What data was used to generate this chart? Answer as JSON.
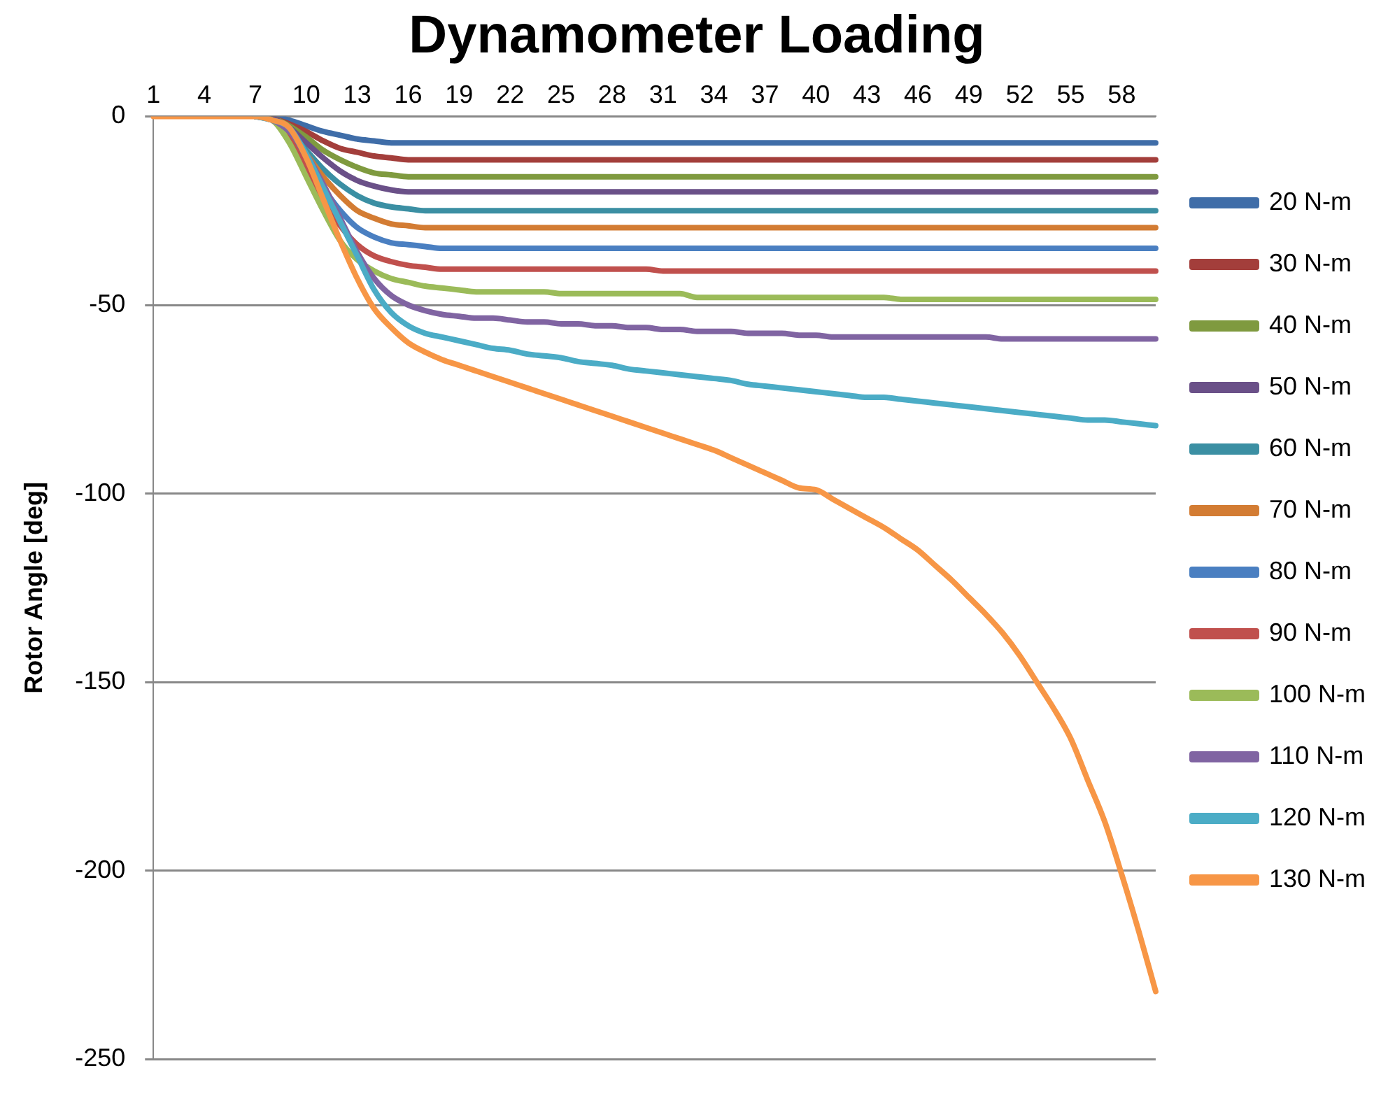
{
  "chart_data": {
    "type": "line",
    "title": "Dynamometer Loading",
    "ylabel": "Rotor Angle [deg]",
    "categories": [
      "1",
      null,
      null,
      "4",
      null,
      null,
      "7",
      null,
      null,
      "10",
      null,
      null,
      "13",
      null,
      null,
      "16",
      null,
      null,
      "19",
      null,
      null,
      "22",
      null,
      null,
      "25",
      null,
      null,
      "28",
      null,
      null,
      "31",
      null,
      null,
      "34",
      null,
      null,
      "37",
      null,
      null,
      "40",
      null,
      null,
      "43",
      null,
      null,
      "46",
      null,
      null,
      "49",
      null,
      null,
      "52",
      null,
      null,
      "55",
      null,
      null,
      "58",
      null,
      null
    ],
    "ylim": [
      -250,
      0
    ],
    "yticks": [
      -250,
      -200,
      -150,
      -100,
      -50,
      0
    ],
    "grid": "y",
    "legend": "right",
    "marker": "none",
    "line_style": "solid",
    "series": [
      {
        "name": "20 N-m",
        "color": "#3f6da8",
        "values": [
          null,
          null,
          null,
          null,
          null,
          null,
          0,
          0,
          -1,
          -2.5,
          -4,
          -5,
          -6,
          -6.5,
          -7,
          -7,
          -7,
          -7,
          -7,
          -7,
          -7,
          -7,
          -7,
          -7,
          -7,
          -7,
          -7,
          -7,
          -7,
          -7,
          -7,
          -7,
          -7,
          -7,
          -7,
          -7,
          -7,
          -7,
          -7,
          -7,
          -7,
          -7,
          -7,
          -7,
          -7,
          -7,
          -7,
          -7,
          -7,
          -7,
          -7,
          -7,
          -7,
          -7,
          -7,
          -7,
          -7,
          -7,
          -7,
          -7
        ]
      },
      {
        "name": "30 N-m",
        "color": "#a33e3b",
        "values": [
          null,
          null,
          null,
          null,
          null,
          null,
          0,
          -0.5,
          -2,
          -4,
          -6.5,
          -8.5,
          -9.5,
          -10.5,
          -11,
          -11.5,
          -11.5,
          -11.5,
          -11.5,
          -11.5,
          -11.5,
          -11.5,
          -11.5,
          -11.5,
          -11.5,
          -11.5,
          -11.5,
          -11.5,
          -11.5,
          -11.5,
          -11.5,
          -11.5,
          -11.5,
          -11.5,
          -11.5,
          -11.5,
          -11.5,
          -11.5,
          -11.5,
          -11.5,
          -11.5,
          -11.5,
          -11.5,
          -11.5,
          -11.5,
          -11.5,
          -11.5,
          -11.5,
          -11.5,
          -11.5,
          -11.5,
          -11.5,
          -11.5,
          -11.5,
          -11.5,
          -11.5,
          -11.5,
          -11.5,
          -11.5,
          -11.5
        ]
      },
      {
        "name": "40 N-m",
        "color": "#7f9a3f",
        "values": [
          null,
          null,
          null,
          null,
          null,
          null,
          0,
          -0.5,
          -2.5,
          -5.5,
          -9,
          -11.5,
          -13.5,
          -15,
          -15.5,
          -16,
          -16,
          -16,
          -16,
          -16,
          -16,
          -16,
          -16,
          -16,
          -16,
          -16,
          -16,
          -16,
          -16,
          -16,
          -16,
          -16,
          -16,
          -16,
          -16,
          -16,
          -16,
          -16,
          -16,
          -16,
          -16,
          -16,
          -16,
          -16,
          -16,
          -16,
          -16,
          -16,
          -16,
          -16,
          -16,
          -16,
          -16,
          -16,
          -16,
          -16,
          -16,
          -16,
          -16,
          -16
        ]
      },
      {
        "name": "50 N-m",
        "color": "#6a5088",
        "values": [
          null,
          null,
          null,
          null,
          null,
          null,
          0,
          -0.5,
          -3,
          -7,
          -11,
          -14.5,
          -17,
          -18.5,
          -19.5,
          -20,
          -20,
          -20,
          -20,
          -20,
          -20,
          -20,
          -20,
          -20,
          -20,
          -20,
          -20,
          -20,
          -20,
          -20,
          -20,
          -20,
          -20,
          -20,
          -20,
          -20,
          -20,
          -20,
          -20,
          -20,
          -20,
          -20,
          -20,
          -20,
          -20,
          -20,
          -20,
          -20,
          -20,
          -20,
          -20,
          -20,
          -20,
          -20,
          -20,
          -20,
          -20,
          -20,
          -20,
          -20
        ]
      },
      {
        "name": "60 N-m",
        "color": "#3b8fa3",
        "values": [
          null,
          null,
          null,
          null,
          null,
          null,
          0,
          -1,
          -4,
          -9,
          -14,
          -18,
          -21,
          -23,
          -24,
          -24.5,
          -25,
          -25,
          -25,
          -25,
          -25,
          -25,
          -25,
          -25,
          -25,
          -25,
          -25,
          -25,
          -25,
          -25,
          -25,
          -25,
          -25,
          -25,
          -25,
          -25,
          -25,
          -25,
          -25,
          -25,
          -25,
          -25,
          -25,
          -25,
          -25,
          -25,
          -25,
          -25,
          -25,
          -25,
          -25,
          -25,
          -25,
          -25,
          -25,
          -25,
          -25,
          -25,
          -25,
          -25
        ]
      },
      {
        "name": "70 N-m",
        "color": "#d37c33",
        "values": [
          null,
          null,
          null,
          null,
          null,
          null,
          0,
          -1,
          -4.5,
          -10,
          -16,
          -21,
          -25,
          -27,
          -28.5,
          -29,
          -29.5,
          -29.5,
          -29.5,
          -29.5,
          -29.5,
          -29.5,
          -29.5,
          -29.5,
          -29.5,
          -29.5,
          -29.5,
          -29.5,
          -29.5,
          -29.5,
          -29.5,
          -29.5,
          -29.5,
          -29.5,
          -29.5,
          -29.5,
          -29.5,
          -29.5,
          -29.5,
          -29.5,
          -29.5,
          -29.5,
          -29.5,
          -29.5,
          -29.5,
          -29.5,
          -29.5,
          -29.5,
          -29.5,
          -29.5,
          -29.5,
          -29.5,
          -29.5,
          -29.5,
          -29.5,
          -29.5,
          -29.5,
          -29.5,
          -29.5,
          -29.5
        ]
      },
      {
        "name": "80 N-m",
        "color": "#4a7fc1",
        "values": [
          null,
          null,
          null,
          null,
          null,
          null,
          0,
          -1,
          -5,
          -12,
          -19,
          -25,
          -29.5,
          -32,
          -33.5,
          -34,
          -34.5,
          -35,
          -35,
          -35,
          -35,
          -35,
          -35,
          -35,
          -35,
          -35,
          -35,
          -35,
          -35,
          -35,
          -35,
          -35,
          -35,
          -35,
          -35,
          -35,
          -35,
          -35,
          -35,
          -35,
          -35,
          -35,
          -35,
          -35,
          -35,
          -35,
          -35,
          -35,
          -35,
          -35,
          -35,
          -35,
          -35,
          -35,
          -35,
          -35,
          -35,
          -35,
          -35,
          -35
        ]
      },
      {
        "name": "90 N-m",
        "color": "#c0504d",
        "values": [
          null,
          null,
          null,
          null,
          null,
          null,
          0,
          -1,
          -6,
          -14,
          -22,
          -29,
          -34,
          -37,
          -38.5,
          -39.5,
          -40,
          -40.5,
          -40.5,
          -40.5,
          -40.5,
          -40.5,
          -40.5,
          -40.5,
          -40.5,
          -40.5,
          -40.5,
          -40.5,
          -40.5,
          -40.5,
          -41,
          -41,
          -41,
          -41,
          -41,
          -41,
          -41,
          -41,
          -41,
          -41,
          -41,
          -41,
          -41,
          -41,
          -41,
          -41,
          -41,
          -41,
          -41,
          -41,
          -41,
          -41,
          -41,
          -41,
          -41,
          -41,
          -41,
          -41,
          -41,
          -41
        ]
      },
      {
        "name": "100 N-m",
        "color": "#9bbb59",
        "values": [
          null,
          null,
          null,
          null,
          null,
          null,
          0,
          -1,
          -7,
          -16,
          -25,
          -33,
          -38,
          -41,
          -43,
          -44,
          -45,
          -45.5,
          -46,
          -46.5,
          -46.5,
          -46.5,
          -46.5,
          -46.5,
          -47,
          -47,
          -47,
          -47,
          -47,
          -47,
          -47,
          -47,
          -48,
          -48,
          -48,
          -48,
          -48,
          -48,
          -48,
          -48,
          -48,
          -48,
          -48,
          -48,
          -48.5,
          -48.5,
          -48.5,
          -48.5,
          -48.5,
          -48.5,
          -48.5,
          -48.5,
          -48.5,
          -48.5,
          -48.5,
          -48.5,
          -48.5,
          -48.5,
          -48.5,
          -48.5
        ]
      },
      {
        "name": "110 N-m",
        "color": "#8064a2",
        "values": [
          null,
          null,
          null,
          null,
          null,
          null,
          0,
          -1,
          -4,
          -10,
          -18,
          -27,
          -36,
          -43,
          -47.5,
          -50,
          -51.5,
          -52.5,
          -53,
          -53.5,
          -53.5,
          -54,
          -54.5,
          -54.5,
          -55,
          -55,
          -55.5,
          -55.5,
          -56,
          -56,
          -56.5,
          -56.5,
          -57,
          -57,
          -57,
          -57.5,
          -57.5,
          -57.5,
          -58,
          -58,
          -58.5,
          -58.5,
          -58.5,
          -58.5,
          -58.5,
          -58.5,
          -58.5,
          -58.5,
          -58.5,
          -58.5,
          -59,
          -59,
          -59,
          -59,
          -59,
          -59,
          -59,
          -59,
          -59,
          -59
        ]
      },
      {
        "name": "120 N-m",
        "color": "#4bacc6",
        "values": [
          null,
          null,
          null,
          null,
          null,
          null,
          0,
          -1,
          -3,
          -10,
          -19,
          -28,
          -37,
          -46,
          -52,
          -55.5,
          -57.5,
          -58.5,
          -59.5,
          -60.5,
          -61.5,
          -62,
          -63,
          -63.5,
          -64,
          -65,
          -65.5,
          -66,
          -67,
          -67.5,
          -68,
          -68.5,
          -69,
          -69.5,
          -70,
          -71,
          -71.5,
          -72,
          -72.5,
          -73,
          -73.5,
          -74,
          -74.5,
          -74.5,
          -75,
          -75.5,
          -76,
          -76.5,
          -77,
          -77.5,
          -78,
          -78.5,
          -79,
          -79.5,
          -80,
          -80.5,
          -80.5,
          -81,
          -81.5,
          -82
        ]
      },
      {
        "name": "130 N-m",
        "color": "#f79646",
        "values": [
          0,
          0,
          0,
          0,
          0,
          0,
          0,
          -1,
          -3,
          -11,
          -22,
          -33,
          -43,
          -51,
          -56,
          -60,
          -62.5,
          -64.5,
          -66,
          -67.5,
          -69,
          -70.5,
          -72,
          -73.5,
          -75,
          -76.5,
          -78,
          -79.5,
          -81,
          -82.5,
          -84,
          -85.5,
          -87,
          -88.5,
          -90.5,
          -92.5,
          -94.5,
          -96.5,
          -98.5,
          -99,
          -101.5,
          -104,
          -106.5,
          -109,
          -112,
          -115,
          -119,
          -123,
          -127.5,
          -132,
          -137,
          -143,
          -150,
          -157,
          -165,
          -176,
          -187,
          -201,
          -216,
          -232
        ]
      }
    ]
  }
}
